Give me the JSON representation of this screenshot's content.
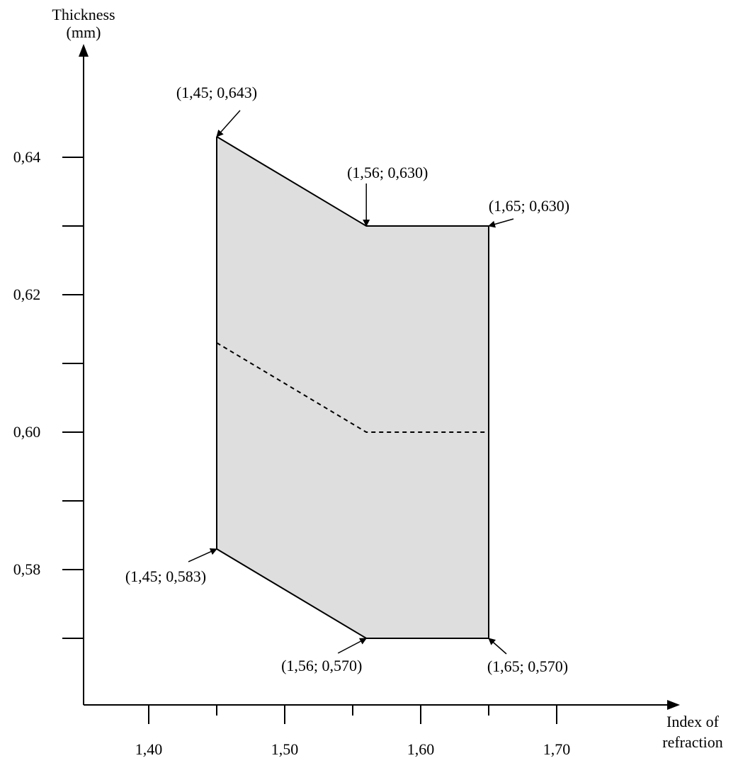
{
  "chart_data": {
    "type": "area",
    "xlabel": [
      "Index of",
      "refraction"
    ],
    "ylabel": [
      "Thickness",
      "(mm)"
    ],
    "x_ticks": [
      {
        "value": 1.4,
        "label": "1,40"
      },
      {
        "value": 1.5,
        "label": "1,50"
      },
      {
        "value": 1.6,
        "label": "1,60"
      },
      {
        "value": 1.7,
        "label": "1,70"
      }
    ],
    "x_minor_ticks": [
      1.45,
      1.55,
      1.65
    ],
    "y_ticks": [
      {
        "value": 0.64,
        "label": "0,64"
      },
      {
        "value": 0.62,
        "label": "0,62"
      },
      {
        "value": 0.6,
        "label": "0,60"
      },
      {
        "value": 0.58,
        "label": "0,58"
      }
    ],
    "y_minor_ticks": [
      0.63,
      0.61,
      0.59,
      0.57
    ],
    "upper_boundary": [
      {
        "x": 1.45,
        "y": 0.643,
        "label": "(1,45; 0,643)"
      },
      {
        "x": 1.56,
        "y": 0.63,
        "label": "(1,56; 0,630)"
      },
      {
        "x": 1.65,
        "y": 0.63,
        "label": "(1,65; 0,630)"
      }
    ],
    "lower_boundary": [
      {
        "x": 1.45,
        "y": 0.583,
        "label": "(1,45; 0,583)"
      },
      {
        "x": 1.56,
        "y": 0.57,
        "label": "(1,56; 0,570)"
      },
      {
        "x": 1.65,
        "y": 0.57,
        "label": "(1,65; 0,570)"
      }
    ],
    "middle_dashed": [
      {
        "x": 1.45,
        "y": 0.613
      },
      {
        "x": 1.56,
        "y": 0.6
      },
      {
        "x": 1.65,
        "y": 0.6
      }
    ],
    "fill_color": "#dedede"
  }
}
